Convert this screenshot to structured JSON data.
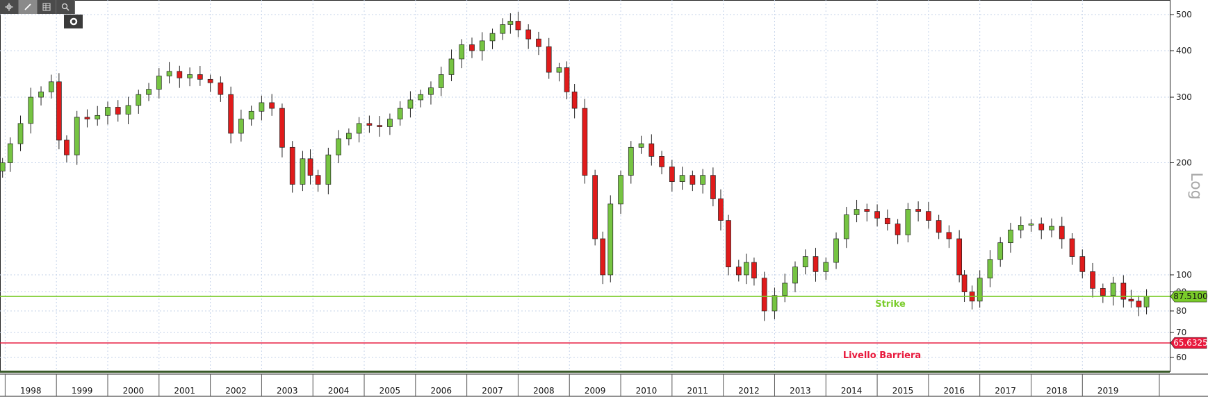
{
  "toolbar": {
    "buttons": [
      {
        "icon": "crosshair-icon"
      },
      {
        "icon": "pen-icon"
      },
      {
        "icon": "table-icon"
      },
      {
        "icon": "magnifier-icon"
      }
    ],
    "sub_button_icon": "ring-icon"
  },
  "chart_data": {
    "type": "candlestick",
    "scale": "log",
    "scale_label": "Log",
    "ylim": [
      55,
      530
    ],
    "y_ticks": [
      {
        "value": 500,
        "label": "500"
      },
      {
        "value": 400,
        "label": "400"
      },
      {
        "value": 300,
        "label": "300"
      },
      {
        "value": 200,
        "label": "200"
      },
      {
        "value": 100,
        "label": "100"
      },
      {
        "value": 90,
        "label": "90"
      },
      {
        "value": 80,
        "label": "80"
      },
      {
        "value": 70,
        "label": "70"
      },
      {
        "value": 60,
        "label": "60"
      }
    ],
    "years": [
      "1998",
      "1999",
      "2000",
      "2001",
      "2002",
      "2003",
      "2004",
      "2005",
      "2006",
      "2007",
      "2008",
      "2009",
      "2010",
      "2011",
      "2012",
      "2013",
      "2014",
      "2015",
      "2016",
      "2017",
      "2018",
      "2019"
    ],
    "x_range": [
      1997.4,
      2020.0
    ],
    "grid": true,
    "up_color": "#76c442",
    "down_color": "#e01b1b",
    "monthly_close": [
      [
        1997.45,
        200
      ],
      [
        1997.6,
        225
      ],
      [
        1997.8,
        255
      ],
      [
        1998.0,
        300
      ],
      [
        1998.2,
        310
      ],
      [
        1998.4,
        330
      ],
      [
        1998.55,
        230
      ],
      [
        1998.7,
        210
      ],
      [
        1998.9,
        265
      ],
      [
        1999.1,
        262
      ],
      [
        1999.3,
        268
      ],
      [
        1999.5,
        282
      ],
      [
        1999.7,
        270
      ],
      [
        1999.9,
        285
      ],
      [
        2000.1,
        305
      ],
      [
        2000.3,
        315
      ],
      [
        2000.5,
        342
      ],
      [
        2000.7,
        352
      ],
      [
        2000.9,
        338
      ],
      [
        2001.1,
        345
      ],
      [
        2001.3,
        335
      ],
      [
        2001.5,
        328
      ],
      [
        2001.7,
        305
      ],
      [
        2001.9,
        240
      ],
      [
        2002.1,
        262
      ],
      [
        2002.3,
        275
      ],
      [
        2002.5,
        290
      ],
      [
        2002.7,
        280
      ],
      [
        2002.9,
        220
      ],
      [
        2003.1,
        175
      ],
      [
        2003.3,
        205
      ],
      [
        2003.45,
        185
      ],
      [
        2003.6,
        175
      ],
      [
        2003.8,
        210
      ],
      [
        2004.0,
        232
      ],
      [
        2004.2,
        240
      ],
      [
        2004.4,
        255
      ],
      [
        2004.6,
        252
      ],
      [
        2004.8,
        250
      ],
      [
        2005.0,
        262
      ],
      [
        2005.2,
        280
      ],
      [
        2005.4,
        295
      ],
      [
        2005.6,
        305
      ],
      [
        2005.8,
        318
      ],
      [
        2006.0,
        345
      ],
      [
        2006.2,
        380
      ],
      [
        2006.4,
        415
      ],
      [
        2006.6,
        400
      ],
      [
        2006.8,
        425
      ],
      [
        2007.0,
        445
      ],
      [
        2007.2,
        470
      ],
      [
        2007.35,
        480
      ],
      [
        2007.5,
        455
      ],
      [
        2007.7,
        430
      ],
      [
        2007.9,
        410
      ],
      [
        2008.1,
        350
      ],
      [
        2008.3,
        360
      ],
      [
        2008.45,
        310
      ],
      [
        2008.6,
        280
      ],
      [
        2008.8,
        185
      ],
      [
        2009.0,
        125
      ],
      [
        2009.15,
        100
      ],
      [
        2009.3,
        155
      ],
      [
        2009.5,
        185
      ],
      [
        2009.7,
        220
      ],
      [
        2009.9,
        225
      ],
      [
        2010.1,
        208
      ],
      [
        2010.3,
        195
      ],
      [
        2010.5,
        178
      ],
      [
        2010.7,
        185
      ],
      [
        2010.9,
        175
      ],
      [
        2011.1,
        185
      ],
      [
        2011.3,
        160
      ],
      [
        2011.45,
        140
      ],
      [
        2011.6,
        105
      ],
      [
        2011.8,
        100
      ],
      [
        2011.95,
        108
      ],
      [
        2012.1,
        98
      ],
      [
        2012.3,
        80
      ],
      [
        2012.5,
        88
      ],
      [
        2012.7,
        95
      ],
      [
        2012.9,
        105
      ],
      [
        2013.1,
        112
      ],
      [
        2013.3,
        102
      ],
      [
        2013.5,
        108
      ],
      [
        2013.7,
        125
      ],
      [
        2013.9,
        145
      ],
      [
        2014.1,
        150
      ],
      [
        2014.3,
        148
      ],
      [
        2014.5,
        142
      ],
      [
        2014.7,
        137
      ],
      [
        2014.9,
        128
      ],
      [
        2015.1,
        150
      ],
      [
        2015.3,
        148
      ],
      [
        2015.5,
        140
      ],
      [
        2015.7,
        130
      ],
      [
        2015.9,
        125
      ],
      [
        2016.1,
        100
      ],
      [
        2016.2,
        90
      ],
      [
        2016.35,
        85
      ],
      [
        2016.5,
        98
      ],
      [
        2016.7,
        110
      ],
      [
        2016.9,
        122
      ],
      [
        2017.1,
        132
      ],
      [
        2017.3,
        136
      ],
      [
        2017.5,
        137
      ],
      [
        2017.7,
        132
      ],
      [
        2017.9,
        135
      ],
      [
        2018.1,
        125
      ],
      [
        2018.3,
        112
      ],
      [
        2018.5,
        102
      ],
      [
        2018.7,
        92
      ],
      [
        2018.9,
        88
      ],
      [
        2019.1,
        95
      ],
      [
        2019.3,
        86
      ],
      [
        2019.45,
        85
      ],
      [
        2019.6,
        82
      ],
      [
        2019.75,
        87.51
      ]
    ],
    "lines": [
      {
        "name": "Strike",
        "value": 87.51,
        "value_label": "87.5100",
        "color": "#7acc2a"
      },
      {
        "name": "Livello Barriera",
        "value": 65.6325,
        "value_label": "65.6325",
        "color": "#e8183c"
      }
    ]
  }
}
